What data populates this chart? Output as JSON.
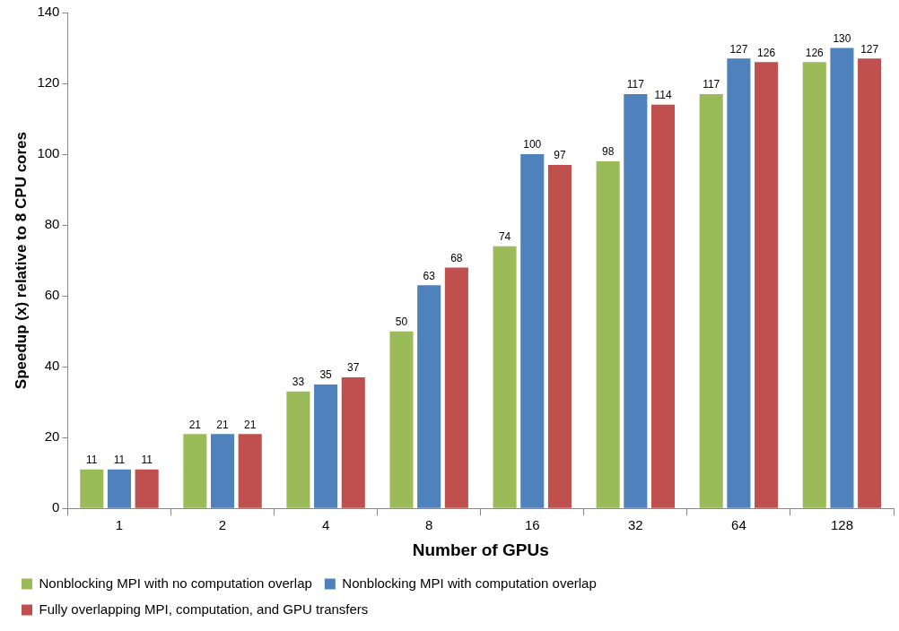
{
  "chart_data": {
    "type": "bar",
    "xlabel": "Number of GPUs",
    "ylabel": "Speedup (x) relative to 8 CPU cores",
    "categories": [
      "1",
      "2",
      "4",
      "8",
      "16",
      "32",
      "64",
      "128"
    ],
    "series": [
      {
        "name": "Nonblocking MPI with no computation overlap",
        "color": "#9bbb59",
        "values": [
          11,
          21,
          33,
          50,
          74,
          98,
          117,
          126
        ]
      },
      {
        "name": "Nonblocking MPI with computation overlap",
        "color": "#4f81bd",
        "values": [
          11,
          21,
          35,
          63,
          100,
          117,
          127,
          130
        ]
      },
      {
        "name": "Fully overlapping MPI, computation, and GPU transfers",
        "color": "#c0504d",
        "values": [
          11,
          21,
          37,
          68,
          97,
          114,
          126,
          127
        ]
      }
    ],
    "ylim": [
      0,
      140
    ],
    "yticks": [
      0,
      20,
      40,
      60,
      80,
      100,
      120,
      140
    ],
    "grid": false,
    "legend": "bottom",
    "data_labels": true
  }
}
